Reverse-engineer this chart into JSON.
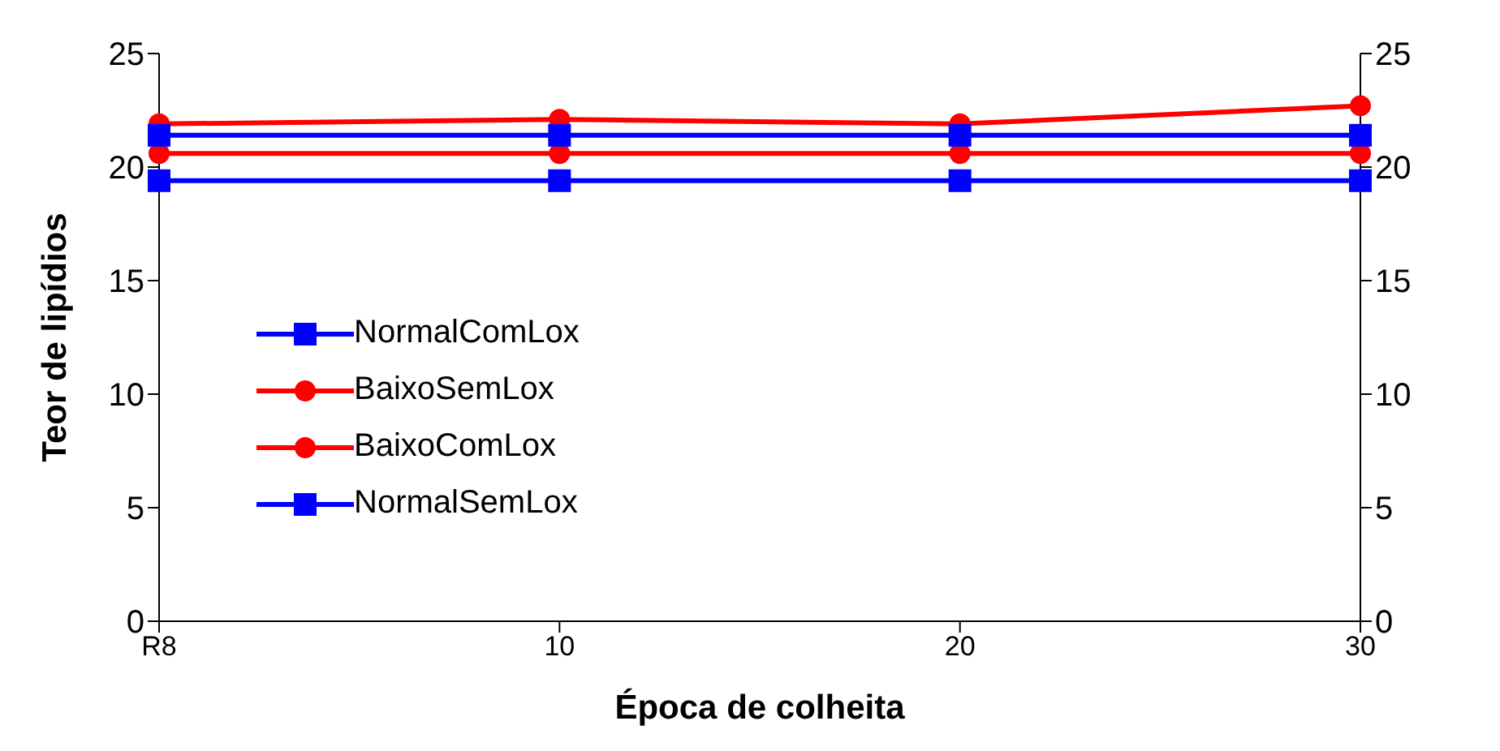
{
  "chart_data": {
    "type": "line",
    "xlabel": "Época de colheita",
    "ylabel": "Teor de lipídios",
    "categories": [
      "R8",
      "10",
      "20",
      "30"
    ],
    "series": [
      {
        "name": "NormalComLox",
        "color": "#0000ff",
        "marker": "square",
        "values": [
          19.4,
          19.4,
          19.4,
          19.4
        ]
      },
      {
        "name": "BaixoSemLox",
        "color": "#ff0000",
        "marker": "circle",
        "values": [
          21.9,
          22.1,
          21.9,
          22.7
        ]
      },
      {
        "name": "BaixoComLox",
        "color": "#ff0000",
        "marker": "circle",
        "values": [
          20.6,
          20.6,
          20.6,
          20.6
        ]
      },
      {
        "name": "NormalSemLox",
        "color": "#0000ff",
        "marker": "square",
        "values": [
          21.4,
          21.4,
          21.4,
          21.4
        ]
      }
    ],
    "ylim": [
      0,
      25
    ],
    "yticks": [
      0,
      5,
      10,
      15,
      20,
      25
    ],
    "y2lim": [
      0,
      25
    ],
    "y2ticks": [
      0,
      5,
      10,
      15,
      20,
      25
    ],
    "grid": false,
    "legend": "left"
  }
}
